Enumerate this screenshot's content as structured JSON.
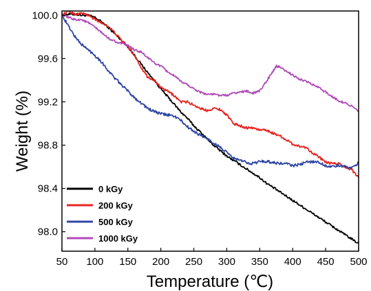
{
  "chart_data": {
    "type": "line",
    "xlabel": "Temperature (℃)",
    "ylabel": "Weight (%)",
    "xlim": [
      50,
      500
    ],
    "ylim": [
      97.82,
      100.04
    ],
    "xticks": [
      50,
      100,
      150,
      200,
      250,
      300,
      350,
      400,
      450,
      500
    ],
    "yticks": [
      98.0,
      98.4,
      98.8,
      99.2,
      99.6,
      100.0
    ],
    "ytick_labels": [
      "98.0",
      "98.4",
      "98.8",
      "99.2",
      "99.6",
      "100.0"
    ],
    "grid": false,
    "legend_position": "bottom-left",
    "series": [
      {
        "name": "0 kGy",
        "color": "#000000",
        "x": [
          50,
          60,
          70,
          80,
          90,
          100,
          110,
          120,
          130,
          140,
          150,
          160,
          170,
          180,
          190,
          200,
          210,
          220,
          230,
          240,
          250,
          260,
          270,
          280,
          290,
          300,
          310,
          320,
          330,
          340,
          350,
          360,
          370,
          380,
          390,
          400,
          410,
          420,
          430,
          440,
          450,
          460,
          470,
          480,
          490,
          500
        ],
        "y": [
          100.0,
          100.01,
          100.01,
          100.0,
          100.0,
          99.98,
          99.94,
          99.89,
          99.83,
          99.77,
          99.71,
          99.63,
          99.55,
          99.47,
          99.4,
          99.32,
          99.25,
          99.18,
          99.11,
          99.05,
          98.98,
          98.92,
          98.86,
          98.8,
          98.75,
          98.7,
          98.66,
          98.62,
          98.58,
          98.54,
          98.5,
          98.45,
          98.41,
          98.37,
          98.33,
          98.29,
          98.25,
          98.21,
          98.17,
          98.13,
          98.09,
          98.05,
          98.01,
          97.97,
          97.93,
          97.89
        ]
      },
      {
        "name": "200 kGy",
        "color": "#e8231f",
        "x": [
          50,
          60,
          70,
          80,
          90,
          100,
          110,
          120,
          130,
          140,
          150,
          160,
          170,
          180,
          190,
          200,
          210,
          220,
          230,
          240,
          250,
          260,
          270,
          280,
          290,
          300,
          310,
          320,
          330,
          340,
          350,
          360,
          370,
          380,
          390,
          400,
          410,
          420,
          430,
          440,
          450,
          460,
          470,
          480,
          490,
          500
        ],
        "y": [
          100.0,
          100.04,
          100.01,
          100.02,
          100.0,
          99.96,
          99.93,
          99.9,
          99.84,
          99.77,
          99.71,
          99.63,
          99.52,
          99.43,
          99.4,
          99.33,
          99.3,
          99.26,
          99.2,
          99.2,
          99.17,
          99.14,
          99.12,
          99.14,
          99.13,
          99.08,
          99.0,
          98.98,
          98.96,
          98.96,
          98.94,
          98.94,
          98.91,
          98.89,
          98.85,
          98.81,
          98.79,
          98.78,
          98.73,
          98.69,
          98.64,
          98.63,
          98.63,
          98.6,
          98.57,
          98.5
        ]
      },
      {
        "name": "500 kGy",
        "color": "#2e45a5",
        "x": [
          50,
          60,
          70,
          80,
          90,
          100,
          110,
          120,
          130,
          140,
          150,
          160,
          170,
          180,
          190,
          200,
          210,
          220,
          230,
          240,
          250,
          260,
          270,
          280,
          290,
          300,
          310,
          320,
          330,
          340,
          350,
          360,
          370,
          380,
          390,
          400,
          410,
          420,
          430,
          440,
          450,
          460,
          470,
          480,
          490,
          500
        ],
        "y": [
          100.0,
          99.9,
          99.8,
          99.73,
          99.68,
          99.63,
          99.57,
          99.49,
          99.42,
          99.36,
          99.3,
          99.24,
          99.19,
          99.14,
          99.11,
          99.09,
          99.08,
          99.07,
          99.03,
          98.97,
          98.93,
          98.89,
          98.86,
          98.82,
          98.78,
          98.73,
          98.68,
          98.66,
          98.64,
          98.63,
          98.65,
          98.65,
          98.64,
          98.63,
          98.63,
          98.61,
          98.62,
          98.64,
          98.65,
          98.64,
          98.61,
          98.6,
          98.61,
          98.6,
          98.59,
          98.64
        ]
      },
      {
        "name": "1000 kGy",
        "color": "#b04ab8",
        "x": [
          50,
          60,
          70,
          80,
          90,
          100,
          110,
          120,
          130,
          140,
          150,
          160,
          170,
          180,
          190,
          200,
          210,
          220,
          230,
          240,
          250,
          260,
          270,
          280,
          290,
          300,
          310,
          320,
          330,
          340,
          350,
          360,
          370,
          375,
          380,
          390,
          400,
          410,
          420,
          430,
          440,
          450,
          460,
          470,
          480,
          490,
          500
        ],
        "y": [
          100.0,
          99.98,
          99.96,
          99.96,
          99.93,
          99.89,
          99.84,
          99.79,
          99.76,
          99.74,
          99.72,
          99.68,
          99.66,
          99.61,
          99.56,
          99.53,
          99.48,
          99.44,
          99.39,
          99.36,
          99.32,
          99.29,
          99.27,
          99.27,
          99.26,
          99.26,
          99.28,
          99.29,
          99.3,
          99.28,
          99.3,
          99.39,
          99.48,
          99.53,
          99.52,
          99.48,
          99.45,
          99.41,
          99.39,
          99.36,
          99.33,
          99.29,
          99.25,
          99.21,
          99.19,
          99.16,
          99.11
        ]
      }
    ]
  }
}
